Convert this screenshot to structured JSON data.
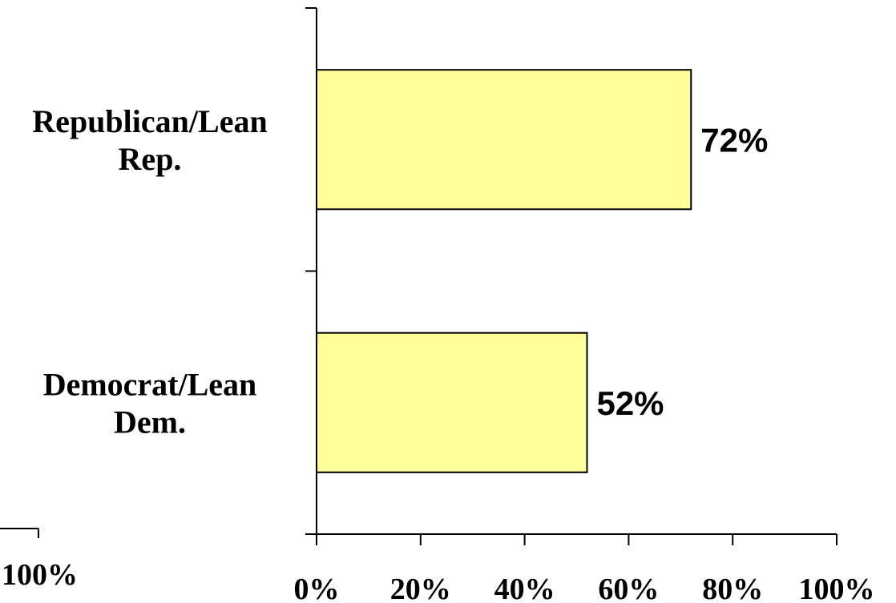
{
  "chart_data": {
    "type": "bar",
    "orientation": "horizontal",
    "categories": [
      [
        "Republican/Lean",
        "Rep."
      ],
      [
        "Democrat/Lean",
        "Dem."
      ]
    ],
    "values": [
      72,
      52
    ],
    "value_labels": [
      "72%",
      "52%"
    ],
    "x_ticks": [
      "0%",
      "20%",
      "40%",
      "60%",
      "80%",
      "100%"
    ],
    "xlim": [
      0,
      100
    ],
    "grid": false,
    "bar_color": "#FFFF99",
    "partial_left_tick_label": "100%"
  }
}
